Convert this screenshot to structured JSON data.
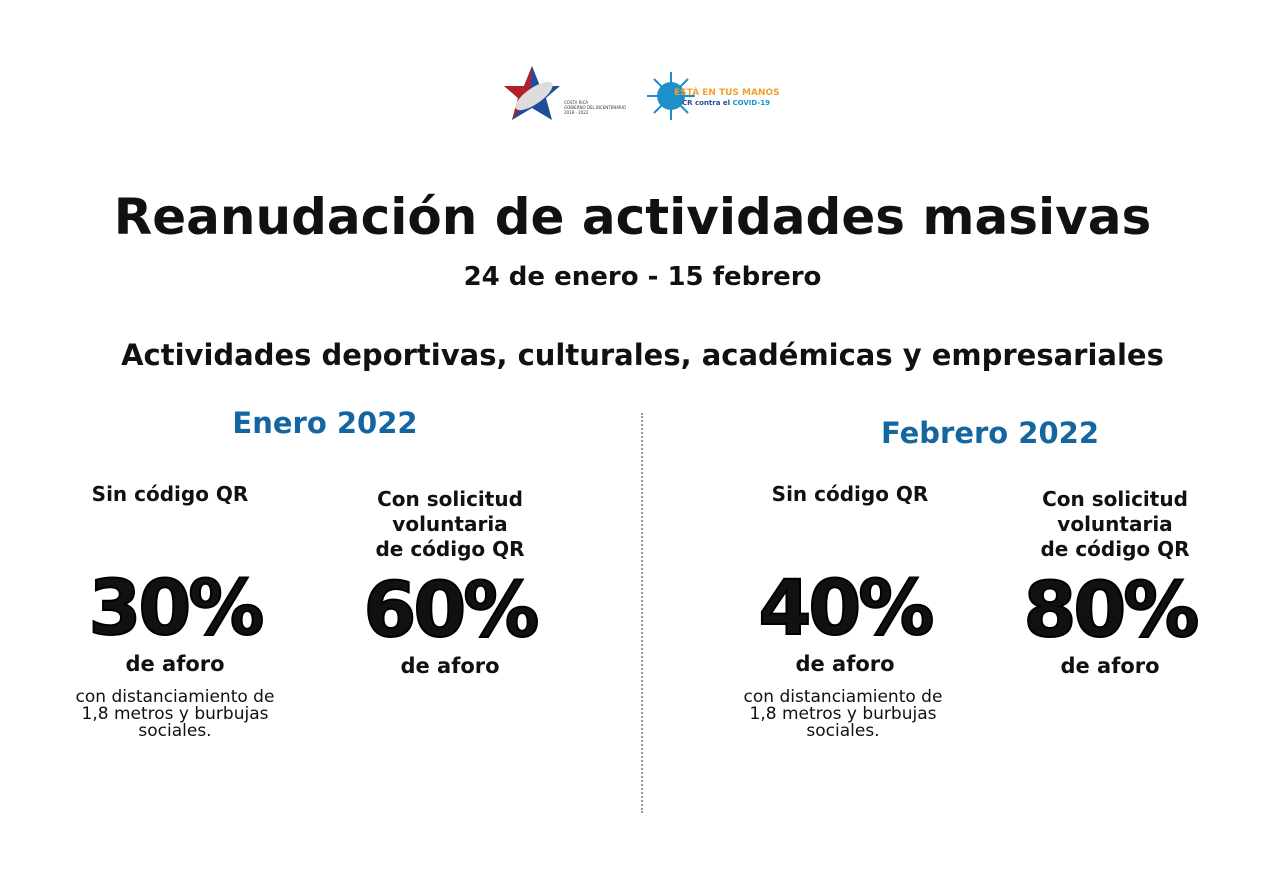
{
  "logos": {
    "government": {
      "lines": [
        "COSTA RICA",
        "GOBIERNO DEL BICENTENARIO",
        "2018 - 2022"
      ]
    },
    "campaign": {
      "line1": "ESTÁ EN TUS MANOS",
      "line2_a": "CR contra el",
      "line2_b": "COVID-19"
    }
  },
  "title": "Reanudación de actividades masivas",
  "date_range": "24 de enero - 15 febrero",
  "subtitle": "Actividades deportivas, culturales, académicas y empresariales",
  "sections": [
    {
      "month": "Enero 2022",
      "left": {
        "label": "Sin código QR",
        "value": "30%",
        "unit": "de aforo",
        "note": [
          "con distanciamiento de",
          "1,8 metros y burbujas",
          "sociales."
        ]
      },
      "right": {
        "label": [
          "Con solicitud",
          "voluntaria",
          "de código QR"
        ],
        "value": "60%",
        "unit": "de aforo"
      }
    },
    {
      "month": "Febrero 2022",
      "left": {
        "label": "Sin código QR",
        "value": "40%",
        "unit": "de aforo",
        "note": [
          "con distanciamiento de",
          "1,8 metros y burbujas",
          "sociales."
        ]
      },
      "right": {
        "label": [
          "Con solicitud",
          "voluntaria",
          "de código QR"
        ],
        "value": "80%",
        "unit": "de aforo"
      }
    }
  ],
  "colors": {
    "accent": "#1565a0",
    "flag_red": "#b3202a",
    "flag_blue": "#1f4d9a"
  }
}
